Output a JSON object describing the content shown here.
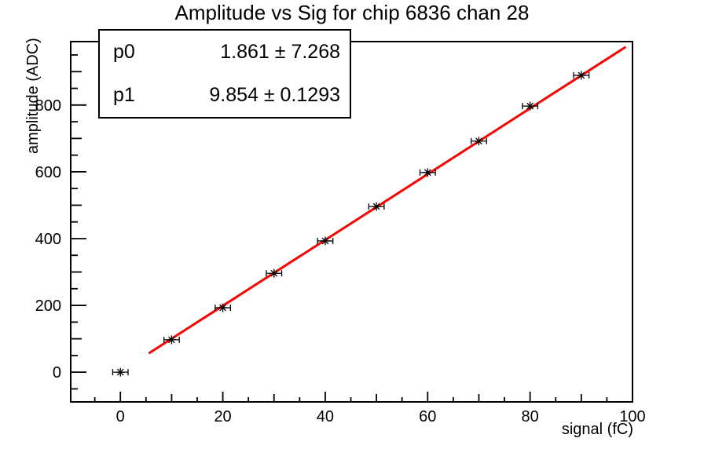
{
  "title": "Amplitude vs Sig for chip 6836 chan 28",
  "stats_box": {
    "rows": [
      {
        "name": "p0",
        "value": "1.861 ± 7.268"
      },
      {
        "name": "p1",
        "value": "9.854 ± 0.1293"
      }
    ]
  },
  "chart_data": {
    "type": "scatter",
    "title": "Amplitude vs Sig for chip 6836 chan 28",
    "xlabel": "signal (fC)",
    "ylabel": "amplitude (ADC)",
    "xlim": [
      -9.7,
      100
    ],
    "ylim": [
      -89,
      990
    ],
    "x_major_ticks": [
      0,
      20,
      40,
      60,
      80,
      100
    ],
    "y_major_ticks": [
      0,
      200,
      400,
      600,
      800
    ],
    "x_minor_step": 5,
    "y_minor_step": 50,
    "grid": false,
    "legend": "none",
    "points": {
      "x": [
        0,
        10,
        20,
        30,
        40,
        50,
        60,
        70,
        80,
        90
      ],
      "y": [
        0,
        97,
        193,
        296,
        393,
        496,
        598,
        692,
        797,
        889
      ],
      "x_err": 1.5,
      "marker": "asterisk",
      "color": "#000000"
    },
    "fit": {
      "label_p0": "p0",
      "label_p1": "p1",
      "p0": 1.861,
      "p1": 9.854,
      "p0_err": 7.268,
      "p1_err": 0.1293,
      "x_range": [
        5.7,
        98.5
      ],
      "color": "#ff0000"
    },
    "colors": {
      "frame": "#000000",
      "background": "#ffffff",
      "text": "#000000"
    }
  }
}
